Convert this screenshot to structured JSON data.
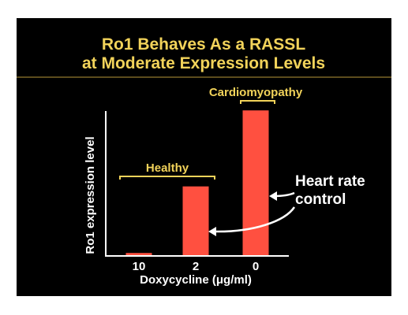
{
  "slide": {
    "title_line_1": "Ro1 Behaves As a RASSL",
    "title_line_2": "at Moderate Expression Levels"
  },
  "chart_data": {
    "type": "bar",
    "categories": [
      "10",
      "2",
      "0"
    ],
    "values": [
      3,
      95,
      200
    ],
    "ylim": [
      0,
      210
    ],
    "xlabel": "Doxycycline (μg/ml)",
    "ylabel": "Ro1 expression level",
    "grid": false,
    "bar_color": "#ff5040",
    "accent_color": "#f2d35a",
    "annotations": {
      "healthy": "Healthy",
      "cardiomyopathy": "Cardiomyopathy",
      "heart_rate_line_1": "Heart rate",
      "heart_rate_line_2": "control"
    }
  }
}
